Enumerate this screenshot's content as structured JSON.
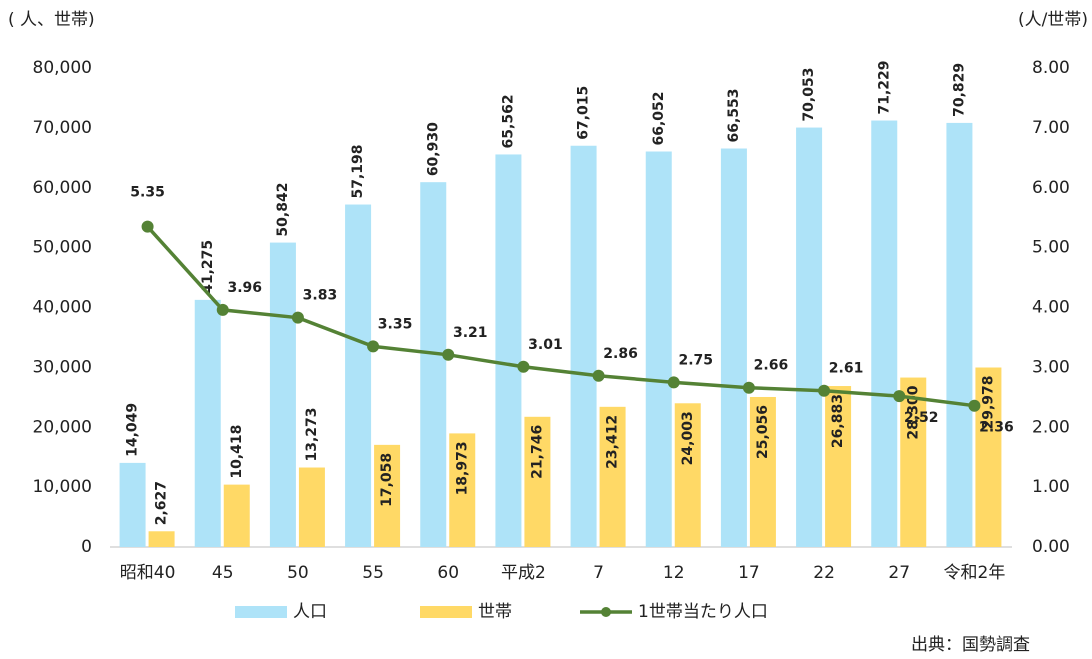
{
  "chart_data": {
    "type": "bar_line",
    "y_axis_label": "( 人、世帯)",
    "y2_axis_label": "(人/世帯)",
    "source": "出典：国勢調査",
    "categories": [
      "昭和40",
      "45",
      "50",
      "55",
      "60",
      "平成2",
      "7",
      "12",
      "17",
      "22",
      "27",
      "令和2年"
    ],
    "series": [
      {
        "name": "人口",
        "type": "bar",
        "color": "#aee3f8",
        "label_color": "#2e75b6",
        "values": [
          14049,
          41275,
          50842,
          57198,
          60930,
          65562,
          67015,
          66052,
          66553,
          70053,
          71229,
          70829
        ],
        "value_labels": [
          "14,049",
          "41,275",
          "50,842",
          "57,198",
          "60,930",
          "65,562",
          "67,015",
          "66,052",
          "66,553",
          "70,053",
          "71,229",
          "70,829"
        ]
      },
      {
        "name": "世帯",
        "type": "bar",
        "color": "#ffd966",
        "label_color": "#843c0c",
        "values": [
          2627,
          10418,
          13273,
          17058,
          18973,
          21746,
          23412,
          24003,
          25056,
          26883,
          28300,
          29978
        ],
        "value_labels": [
          "2,627",
          "10,418",
          "13,273",
          "17,058",
          "18,973",
          "21,746",
          "23,412",
          "24,003",
          "25,056",
          "26,883",
          "28,300",
          "29,978"
        ]
      },
      {
        "name": "1世帯当たり人口",
        "type": "line",
        "axis": "y2",
        "color": "#548235",
        "label_color": "#3b5e1f",
        "values": [
          5.35,
          3.96,
          3.83,
          3.35,
          3.21,
          3.01,
          2.86,
          2.75,
          2.66,
          2.61,
          2.52,
          2.36
        ]
      }
    ],
    "ylim": [
      0,
      80000
    ],
    "yticks": [
      0,
      {
        "value": 10000,
        "label": "10,000"
      },
      {
        "value": 20000,
        "label": "20,000"
      },
      {
        "value": 30000,
        "label": "30,000"
      },
      {
        "value": 40000,
        "label": "40,000"
      },
      {
        "value": 50000,
        "label": "50,000"
      },
      {
        "value": 60000,
        "label": "60,000"
      },
      {
        "value": 70000,
        "label": "70,000"
      },
      {
        "value": 80000,
        "label": "80,000"
      }
    ],
    "y2lim": [
      0,
      8
    ],
    "y2ticks": [
      {
        "value": 0,
        "label": "0.00"
      },
      {
        "value": 1,
        "label": "1.00"
      },
      {
        "value": 2,
        "label": "2.00"
      },
      {
        "value": 3,
        "label": "3.00"
      },
      {
        "value": 4,
        "label": "4.00"
      },
      {
        "value": 5,
        "label": "5.00"
      },
      {
        "value": 6,
        "label": "6.00"
      },
      {
        "value": 7,
        "label": "7.00"
      },
      {
        "value": 8,
        "label": "8.00"
      }
    ],
    "legend": "bottom"
  }
}
